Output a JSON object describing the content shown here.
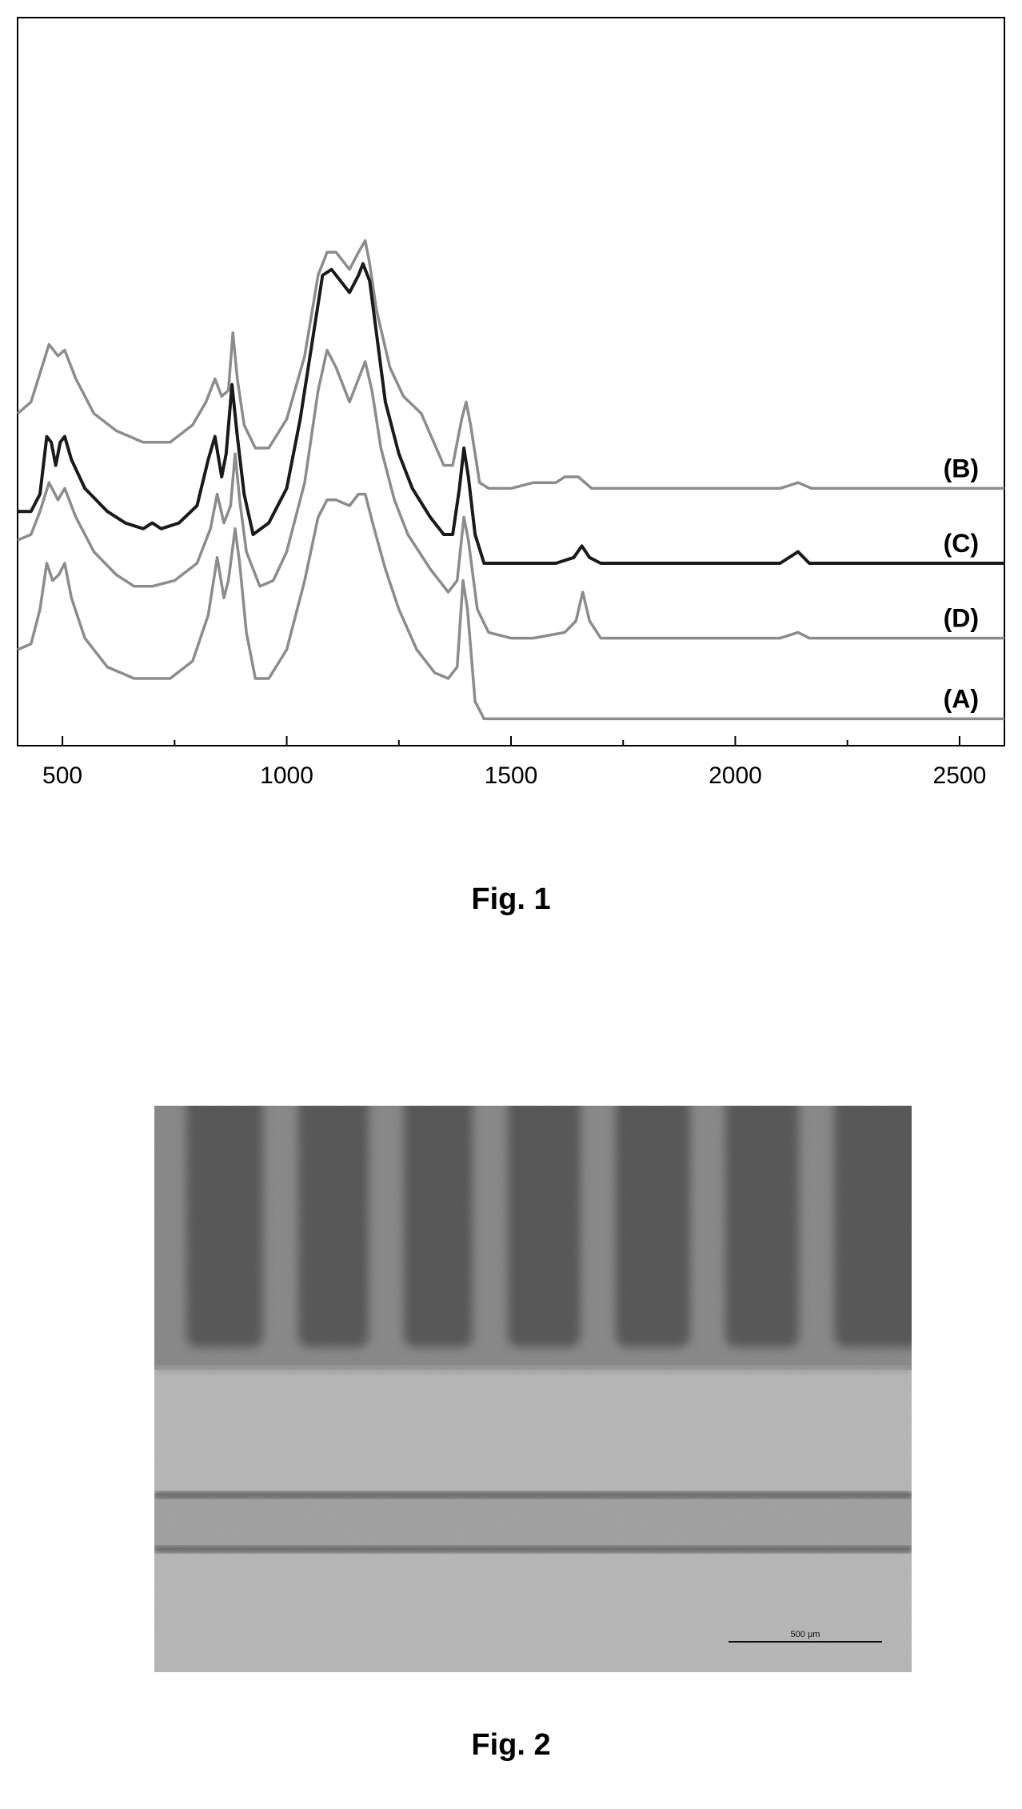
{
  "figure1": {
    "caption": "Fig. 1",
    "chart_data": {
      "type": "line",
      "title": "",
      "xlabel": "",
      "ylabel": "",
      "xlim": [
        400,
        2600
      ],
      "x_ticks": [
        500,
        1000,
        1500,
        2000,
        2500
      ],
      "y_ticks_shown": false,
      "grid": false,
      "legend": "labels placed at right end of each trace",
      "series": [
        {
          "name": "(B)",
          "color": "#8c8c8c",
          "points": [
            [
              400,
              0.56
            ],
            [
              430,
              0.58
            ],
            [
              470,
              0.68
            ],
            [
              490,
              0.66
            ],
            [
              505,
              0.67
            ],
            [
              530,
              0.62
            ],
            [
              570,
              0.56
            ],
            [
              620,
              0.53
            ],
            [
              680,
              0.51
            ],
            [
              740,
              0.51
            ],
            [
              790,
              0.54
            ],
            [
              820,
              0.58
            ],
            [
              840,
              0.62
            ],
            [
              855,
              0.59
            ],
            [
              870,
              0.6
            ],
            [
              880,
              0.7
            ],
            [
              890,
              0.62
            ],
            [
              905,
              0.54
            ],
            [
              930,
              0.5
            ],
            [
              960,
              0.5
            ],
            [
              1000,
              0.55
            ],
            [
              1040,
              0.66
            ],
            [
              1070,
              0.8
            ],
            [
              1090,
              0.84
            ],
            [
              1110,
              0.84
            ],
            [
              1140,
              0.81
            ],
            [
              1160,
              0.84
            ],
            [
              1175,
              0.86
            ],
            [
              1185,
              0.82
            ],
            [
              1200,
              0.74
            ],
            [
              1230,
              0.64
            ],
            [
              1260,
              0.59
            ],
            [
              1300,
              0.56
            ],
            [
              1350,
              0.47
            ],
            [
              1370,
              0.47
            ],
            [
              1390,
              0.55
            ],
            [
              1400,
              0.58
            ],
            [
              1410,
              0.54
            ],
            [
              1430,
              0.44
            ],
            [
              1450,
              0.43
            ],
            [
              1500,
              0.43
            ],
            [
              1550,
              0.44
            ],
            [
              1600,
              0.44
            ],
            [
              1620,
              0.45
            ],
            [
              1650,
              0.45
            ],
            [
              1680,
              0.43
            ],
            [
              1700,
              0.43
            ],
            [
              1800,
              0.43
            ],
            [
              1900,
              0.43
            ],
            [
              2000,
              0.43
            ],
            [
              2100,
              0.43
            ],
            [
              2140,
              0.44
            ],
            [
              2170,
              0.43
            ],
            [
              2200,
              0.43
            ],
            [
              2400,
              0.43
            ],
            [
              2600,
              0.43
            ]
          ]
        },
        {
          "name": "(C)",
          "color": "#1a1a1a",
          "points": [
            [
              400,
              0.39
            ],
            [
              430,
              0.39
            ],
            [
              450,
              0.42
            ],
            [
              465,
              0.52
            ],
            [
              475,
              0.51
            ],
            [
              485,
              0.47
            ],
            [
              495,
              0.51
            ],
            [
              505,
              0.52
            ],
            [
              520,
              0.48
            ],
            [
              550,
              0.43
            ],
            [
              600,
              0.39
            ],
            [
              640,
              0.37
            ],
            [
              680,
              0.36
            ],
            [
              700,
              0.37
            ],
            [
              720,
              0.36
            ],
            [
              760,
              0.37
            ],
            [
              800,
              0.4
            ],
            [
              825,
              0.48
            ],
            [
              840,
              0.52
            ],
            [
              855,
              0.45
            ],
            [
              865,
              0.49
            ],
            [
              878,
              0.61
            ],
            [
              890,
              0.52
            ],
            [
              905,
              0.42
            ],
            [
              925,
              0.35
            ],
            [
              960,
              0.37
            ],
            [
              1000,
              0.43
            ],
            [
              1030,
              0.55
            ],
            [
              1060,
              0.7
            ],
            [
              1080,
              0.8
            ],
            [
              1100,
              0.81
            ],
            [
              1120,
              0.79
            ],
            [
              1140,
              0.77
            ],
            [
              1160,
              0.8
            ],
            [
              1170,
              0.82
            ],
            [
              1185,
              0.79
            ],
            [
              1200,
              0.7
            ],
            [
              1220,
              0.58
            ],
            [
              1250,
              0.49
            ],
            [
              1280,
              0.43
            ],
            [
              1320,
              0.38
            ],
            [
              1350,
              0.35
            ],
            [
              1370,
              0.35
            ],
            [
              1385,
              0.43
            ],
            [
              1395,
              0.5
            ],
            [
              1405,
              0.45
            ],
            [
              1420,
              0.35
            ],
            [
              1440,
              0.3
            ],
            [
              1500,
              0.3
            ],
            [
              1600,
              0.3
            ],
            [
              1640,
              0.31
            ],
            [
              1658,
              0.33
            ],
            [
              1675,
              0.31
            ],
            [
              1700,
              0.3
            ],
            [
              1800,
              0.3
            ],
            [
              2000,
              0.3
            ],
            [
              2100,
              0.3
            ],
            [
              2140,
              0.32
            ],
            [
              2165,
              0.3
            ],
            [
              2200,
              0.3
            ],
            [
              2400,
              0.3
            ],
            [
              2600,
              0.3
            ]
          ]
        },
        {
          "name": "(D)",
          "color": "#8c8c8c",
          "points": [
            [
              400,
              0.34
            ],
            [
              430,
              0.35
            ],
            [
              450,
              0.39
            ],
            [
              470,
              0.44
            ],
            [
              490,
              0.41
            ],
            [
              505,
              0.43
            ],
            [
              530,
              0.38
            ],
            [
              570,
              0.32
            ],
            [
              620,
              0.28
            ],
            [
              660,
              0.26
            ],
            [
              700,
              0.26
            ],
            [
              750,
              0.27
            ],
            [
              800,
              0.3
            ],
            [
              830,
              0.36
            ],
            [
              845,
              0.42
            ],
            [
              860,
              0.37
            ],
            [
              875,
              0.4
            ],
            [
              885,
              0.49
            ],
            [
              895,
              0.41
            ],
            [
              910,
              0.32
            ],
            [
              940,
              0.26
            ],
            [
              970,
              0.27
            ],
            [
              1000,
              0.32
            ],
            [
              1040,
              0.44
            ],
            [
              1070,
              0.6
            ],
            [
              1090,
              0.67
            ],
            [
              1110,
              0.64
            ],
            [
              1140,
              0.58
            ],
            [
              1160,
              0.62
            ],
            [
              1175,
              0.65
            ],
            [
              1190,
              0.6
            ],
            [
              1210,
              0.5
            ],
            [
              1240,
              0.41
            ],
            [
              1270,
              0.35
            ],
            [
              1320,
              0.29
            ],
            [
              1360,
              0.25
            ],
            [
              1380,
              0.27
            ],
            [
              1395,
              0.38
            ],
            [
              1405,
              0.34
            ],
            [
              1425,
              0.22
            ],
            [
              1450,
              0.18
            ],
            [
              1500,
              0.17
            ],
            [
              1550,
              0.17
            ],
            [
              1620,
              0.18
            ],
            [
              1645,
              0.2
            ],
            [
              1660,
              0.25
            ],
            [
              1675,
              0.2
            ],
            [
              1700,
              0.17
            ],
            [
              1800,
              0.17
            ],
            [
              2000,
              0.17
            ],
            [
              2100,
              0.17
            ],
            [
              2140,
              0.18
            ],
            [
              2165,
              0.17
            ],
            [
              2200,
              0.17
            ],
            [
              2400,
              0.17
            ],
            [
              2600,
              0.17
            ]
          ]
        },
        {
          "name": "(A)",
          "color": "#8c8c8c",
          "points": [
            [
              400,
              0.15
            ],
            [
              430,
              0.16
            ],
            [
              450,
              0.22
            ],
            [
              465,
              0.3
            ],
            [
              478,
              0.27
            ],
            [
              492,
              0.28
            ],
            [
              505,
              0.3
            ],
            [
              520,
              0.24
            ],
            [
              550,
              0.17
            ],
            [
              600,
              0.12
            ],
            [
              660,
              0.1
            ],
            [
              700,
              0.1
            ],
            [
              740,
              0.1
            ],
            [
              790,
              0.13
            ],
            [
              825,
              0.21
            ],
            [
              845,
              0.31
            ],
            [
              860,
              0.24
            ],
            [
              870,
              0.27
            ],
            [
              885,
              0.36
            ],
            [
              895,
              0.3
            ],
            [
              910,
              0.18
            ],
            [
              930,
              0.1
            ],
            [
              960,
              0.1
            ],
            [
              1000,
              0.15
            ],
            [
              1040,
              0.27
            ],
            [
              1070,
              0.38
            ],
            [
              1090,
              0.41
            ],
            [
              1110,
              0.41
            ],
            [
              1140,
              0.4
            ],
            [
              1160,
              0.42
            ],
            [
              1175,
              0.42
            ],
            [
              1195,
              0.36
            ],
            [
              1220,
              0.29
            ],
            [
              1250,
              0.22
            ],
            [
              1290,
              0.15
            ],
            [
              1330,
              0.11
            ],
            [
              1360,
              0.1
            ],
            [
              1380,
              0.12
            ],
            [
              1393,
              0.27
            ],
            [
              1403,
              0.22
            ],
            [
              1420,
              0.06
            ],
            [
              1440,
              0.03
            ],
            [
              1500,
              0.03
            ],
            [
              1600,
              0.03
            ],
            [
              1700,
              0.03
            ],
            [
              1800,
              0.03
            ],
            [
              2000,
              0.03
            ],
            [
              2200,
              0.03
            ],
            [
              2400,
              0.03
            ],
            [
              2600,
              0.03
            ]
          ]
        }
      ]
    }
  },
  "figure2": {
    "caption": "Fig. 2",
    "scale_bar_label": "500 μm"
  }
}
